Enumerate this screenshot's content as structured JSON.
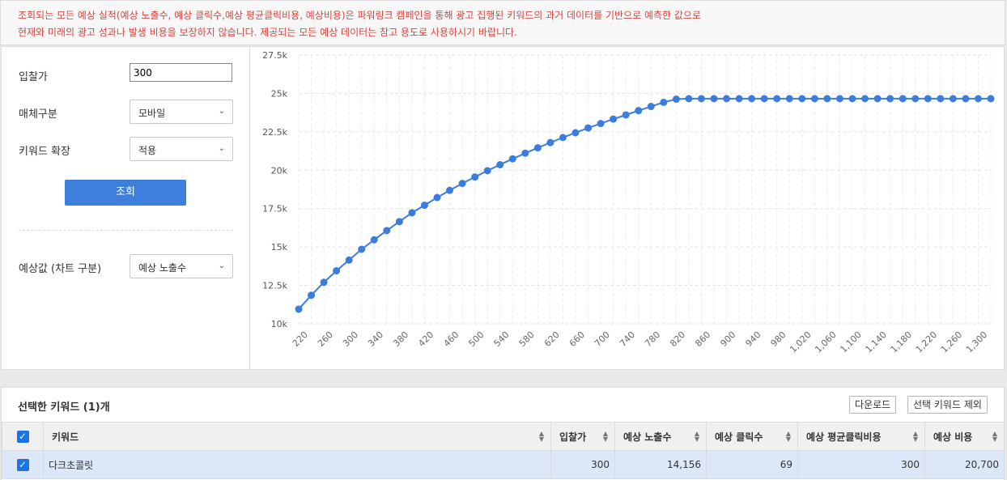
{
  "notice": {
    "line1": "조회되는 모든 예상 실적(예상 노출수, 예상 클릭수,예상 평균클릭비용, 예상비용)은 파워링크 캠페인을 통해 광고 집행된 키워드의 과거 데이터를 기반으로 예측한 값으로",
    "line2": "현재와 미래의 광고 성과나 발생 비용을 보장하지 않습니다. 제공되는 모든 예상 데이터는 참고 용도로 사용하시기 바랍니다."
  },
  "form": {
    "bid_label": "입찰가",
    "bid_value": "300",
    "media_label": "매체구분",
    "media_value": "모바일",
    "expand_label": "키워드 확장",
    "expand_value": "적용",
    "query_button": "조회",
    "chart_select_label": "예상값 (차트 구분)",
    "chart_select_value": "예상 노출수"
  },
  "chart_data": {
    "type": "line",
    "y_ticks": [
      "27.5k",
      "25k",
      "22.5k",
      "20k",
      "17.5k",
      "15k",
      "12.5k",
      "10k"
    ],
    "ylim": [
      10000,
      27500
    ],
    "x_tick_labels": [
      "220",
      "260",
      "300",
      "340",
      "380",
      "420",
      "460",
      "500",
      "540",
      "580",
      "620",
      "660",
      "700",
      "740",
      "780",
      "820",
      "860",
      "900",
      "940",
      "980",
      "1,020",
      "1,060",
      "1,100",
      "1,140",
      "1,180",
      "1,220",
      "1,260",
      "1,300"
    ],
    "x": [
      210,
      230,
      250,
      270,
      290,
      310,
      330,
      350,
      370,
      390,
      410,
      430,
      450,
      470,
      490,
      510,
      530,
      550,
      570,
      590,
      610,
      630,
      650,
      670,
      690,
      710,
      730,
      750,
      770,
      790,
      810,
      830,
      850,
      870,
      890,
      910,
      930,
      950,
      970,
      990,
      1010,
      1030,
      1050,
      1070,
      1090,
      1110,
      1130,
      1150,
      1170,
      1190,
      1210,
      1230,
      1250,
      1270,
      1290,
      1310
    ],
    "values": [
      10950,
      11860,
      12700,
      13450,
      14150,
      14850,
      15470,
      16070,
      16650,
      17230,
      17720,
      18220,
      18690,
      19140,
      19560,
      19970,
      20360,
      20740,
      21110,
      21460,
      21800,
      22130,
      22440,
      22750,
      23040,
      23330,
      23600,
      23880,
      24150,
      24420,
      24630,
      24660,
      24660,
      24660,
      24660,
      24660,
      24660,
      24660,
      24660,
      24660,
      24660,
      24660,
      24660,
      24660,
      24660,
      24660,
      24660,
      24660,
      24660,
      24660,
      24660,
      24660,
      24660,
      24660,
      24660,
      24660
    ],
    "color": "#3b7ddd",
    "grid": true
  },
  "selected": {
    "title": "선택한 키워드 (1)개",
    "download_button": "다운로드",
    "remove_button": "선택 키워드 제외",
    "columns": [
      "키워드",
      "입찰가",
      "예상 노출수",
      "예상 클릭수",
      "예상 평균클릭비용",
      "예상 비용"
    ],
    "rows": [
      {
        "keyword": "다크초콜릿",
        "bid": "300",
        "impressions": "14,156",
        "clicks": "69",
        "avg_cpc": "300",
        "cost": "20,700"
      }
    ]
  },
  "icons": {
    "chevron": "chevron-down-icon",
    "check": "checkbox-checked-icon",
    "sort": "sort-icon"
  }
}
